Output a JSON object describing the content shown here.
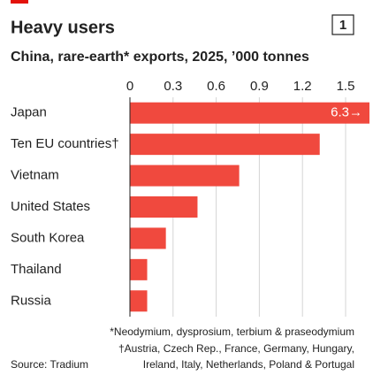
{
  "chart_data": {
    "type": "bar",
    "orientation": "horizontal",
    "title": "Heavy users",
    "subtitle": "China, rare-earth* exports, 2025, ’000 tonnes",
    "chart_number": "1",
    "categories": [
      "Japan",
      "Ten EU countries†",
      "Vietnam",
      "United States",
      "South Korea",
      "Thailand",
      "Russia"
    ],
    "values": [
      6.3,
      1.32,
      0.76,
      0.47,
      0.25,
      0.12,
      0.12
    ],
    "value_labels": [
      "6.3→",
      null,
      null,
      null,
      null,
      null,
      null
    ],
    "color": "#f0493e",
    "xlim": [
      0,
      1.5
    ],
    "xticks": [
      0,
      0.3,
      0.6,
      0.9,
      1.2,
      1.5
    ],
    "grid": true,
    "footnotes": [
      "*Neodymium, dysprosium, terbium & praseodymium",
      "†Austria, Czech Rep., France, Germany, Hungary,",
      "Ireland, Italy, Netherlands, Poland & Portugal"
    ],
    "source": "Source: Tradium"
  }
}
